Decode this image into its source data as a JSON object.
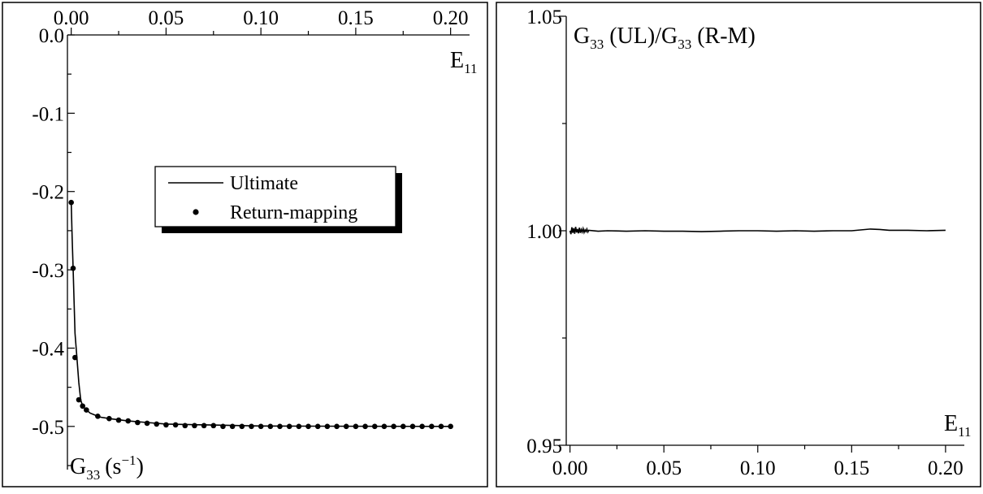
{
  "chart_data": [
    {
      "type": "line",
      "xlabel_main": "E",
      "xlabel_sub": "11",
      "ylabel_main": "G",
      "ylabel_sub": "33",
      "ylabel_unit": "(s",
      "ylabel_unit_sup": "−1",
      "ylabel_unit_close": ")",
      "xlim": [
        -0.002,
        0.21
      ],
      "ylim": [
        -0.55,
        0.0
      ],
      "x_axis_position": "top",
      "xticks": [
        0.0,
        0.05,
        0.1,
        0.15,
        0.2
      ],
      "xtick_labels": [
        "0.00",
        "0.05",
        "0.10",
        "0.15",
        "0.20"
      ],
      "yticks": [
        0.0,
        -0.1,
        -0.2,
        -0.3,
        -0.4,
        -0.5
      ],
      "ytick_labels": [
        "0.0",
        "-0.1",
        "-0.2",
        "-0.3",
        "-0.4",
        "-0.5"
      ],
      "legend": {
        "placement": "center",
        "entries": [
          "Ultimate",
          "Return-mapping"
        ]
      },
      "series": [
        {
          "name": "Ultimate",
          "style": "line",
          "color": "#000000",
          "x": [
            0.0,
            0.0005,
            0.001,
            0.0015,
            0.002,
            0.003,
            0.004,
            0.005,
            0.006,
            0.008,
            0.01,
            0.015,
            0.02,
            0.03,
            0.04,
            0.05,
            0.07,
            0.1,
            0.15,
            0.2
          ],
          "y": [
            -0.214,
            -0.26,
            -0.298,
            -0.34,
            -0.381,
            -0.412,
            -0.444,
            -0.466,
            -0.474,
            -0.479,
            -0.483,
            -0.488,
            -0.49,
            -0.493,
            -0.495,
            -0.497,
            -0.498,
            -0.4995,
            -0.4998,
            -0.5
          ]
        },
        {
          "name": "Return-mapping",
          "style": "markers",
          "color": "#000000",
          "x": [
            0.0,
            0.001,
            0.002,
            0.004,
            0.006,
            0.008,
            0.014,
            0.02,
            0.025,
            0.03,
            0.035,
            0.04,
            0.045,
            0.05,
            0.055,
            0.06,
            0.065,
            0.07,
            0.075,
            0.08,
            0.085,
            0.09,
            0.095,
            0.1,
            0.105,
            0.11,
            0.115,
            0.12,
            0.125,
            0.13,
            0.135,
            0.14,
            0.145,
            0.15,
            0.155,
            0.16,
            0.165,
            0.17,
            0.175,
            0.18,
            0.185,
            0.19,
            0.195,
            0.2
          ],
          "y": [
            -0.214,
            -0.298,
            -0.412,
            -0.466,
            -0.474,
            -0.479,
            -0.487,
            -0.49,
            -0.492,
            -0.493,
            -0.495,
            -0.496,
            -0.497,
            -0.498,
            -0.498,
            -0.499,
            -0.499,
            -0.499,
            -0.499,
            -0.5,
            -0.5,
            -0.5,
            -0.5,
            -0.5,
            -0.5,
            -0.5,
            -0.5,
            -0.5,
            -0.5,
            -0.5,
            -0.5,
            -0.5,
            -0.5,
            -0.5,
            -0.5,
            -0.5,
            -0.5,
            -0.5,
            -0.5,
            -0.5,
            -0.5,
            -0.5,
            -0.5,
            -0.5
          ]
        }
      ]
    },
    {
      "type": "line",
      "ylabel_main": "G",
      "ylabel_sub": "33",
      "ylabel_mid": " (UL)/G",
      "ylabel_sub2": "33",
      "ylabel_end": " (R-M)",
      "xlabel_main": "E",
      "xlabel_sub": "11",
      "xlim": [
        -0.002,
        0.21
      ],
      "ylim": [
        0.95,
        1.05
      ],
      "x_axis_position": "bottom",
      "xticks": [
        0.0,
        0.05,
        0.1,
        0.15,
        0.2
      ],
      "xtick_labels": [
        "0.00",
        "0.05",
        "0.10",
        "0.15",
        "0.20"
      ],
      "yticks": [
        0.95,
        1.0,
        1.05
      ],
      "ytick_labels": [
        "0.95",
        "1.00",
        "1.05"
      ],
      "series": [
        {
          "style": "line",
          "color": "#000000",
          "x": [
            0.0,
            0.0005,
            0.001,
            0.0015,
            0.002,
            0.0025,
            0.003,
            0.0035,
            0.004,
            0.0045,
            0.005,
            0.0055,
            0.006,
            0.0065,
            0.007,
            0.0075,
            0.008,
            0.0085,
            0.009,
            0.0095,
            0.01,
            0.015,
            0.02,
            0.03,
            0.04,
            0.05,
            0.06,
            0.07,
            0.08,
            0.09,
            0.1,
            0.11,
            0.12,
            0.13,
            0.14,
            0.15,
            0.16,
            0.165,
            0.17,
            0.18,
            0.19,
            0.2
          ],
          "y": [
            1.0,
            0.9992,
            1.0008,
            0.9995,
            1.0006,
            0.9993,
            1.0009,
            0.9996,
            1.0004,
            0.9994,
            1.0007,
            0.9995,
            1.0003,
            0.9997,
            1.0005,
            0.9996,
            1.0002,
            0.9998,
            1.0004,
            0.9997,
            1.0001,
            0.9999,
            1.0,
            0.9999,
            1.0,
            0.9999,
            0.9999,
            0.9998,
            0.9999,
            1.0,
            1.0,
            0.9999,
            1.0,
            0.9999,
            1.0,
            1.0,
            1.0004,
            1.0003,
            1.0001,
            1.0001,
            1.0,
            1.0001
          ]
        }
      ]
    }
  ]
}
